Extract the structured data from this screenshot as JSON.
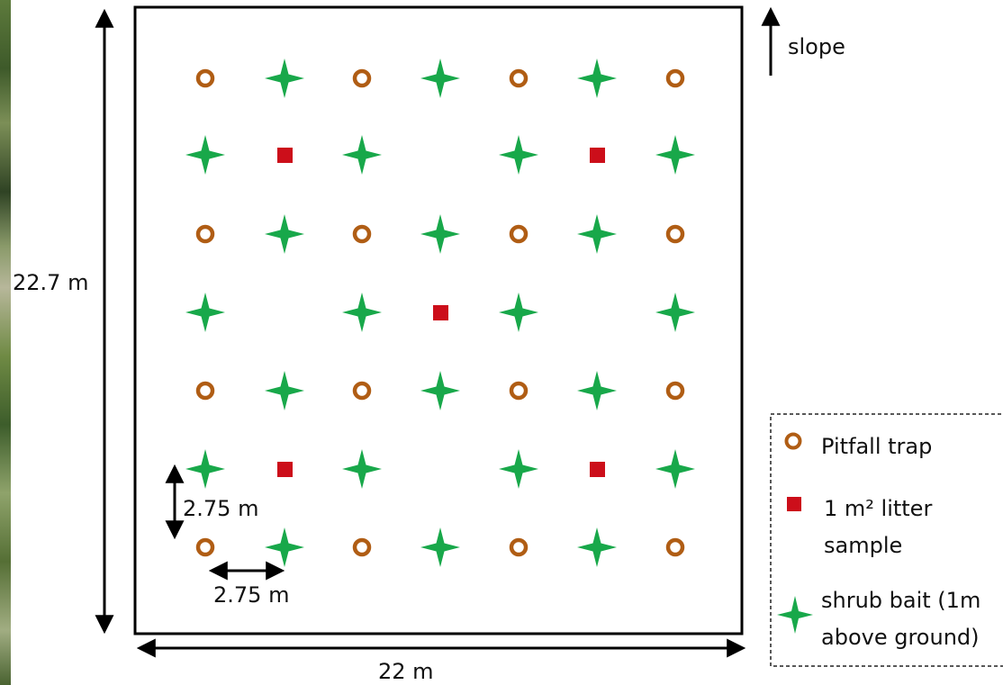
{
  "dimensions": {
    "height": "22.7 m",
    "width": "22 m",
    "vertical_spacing": "2.75 m",
    "horizontal_spacing": "2.75 m"
  },
  "slope_label": "slope",
  "legend": {
    "pitfall": "Pitfall trap",
    "litter_line1": "1 m² litter",
    "litter_line2": "sample",
    "bait_line1": "shrub bait (1m",
    "bait_line2": "above ground)"
  },
  "colors": {
    "pitfall": "#b05d14",
    "litter": "#cc0e1a",
    "bait": "#18a84a"
  },
  "grid": {
    "rows": [
      [
        "pitfall",
        "bait",
        "pitfall",
        "bait",
        "pitfall",
        "bait",
        "pitfall"
      ],
      [
        "bait",
        "litter",
        "bait",
        null,
        "bait",
        "litter",
        "bait"
      ],
      [
        "pitfall",
        "bait",
        "pitfall",
        "bait",
        "pitfall",
        "bait",
        "pitfall"
      ],
      [
        "bait",
        null,
        "bait",
        "litter",
        "bait",
        null,
        "bait"
      ],
      [
        "pitfall",
        "bait",
        "pitfall",
        "bait",
        "pitfall",
        "bait",
        "pitfall"
      ],
      [
        "bait",
        "litter",
        "bait",
        null,
        "bait",
        "litter",
        "bait"
      ],
      [
        "pitfall",
        "bait",
        "pitfall",
        "bait",
        "pitfall",
        "bait",
        "pitfall"
      ]
    ]
  }
}
